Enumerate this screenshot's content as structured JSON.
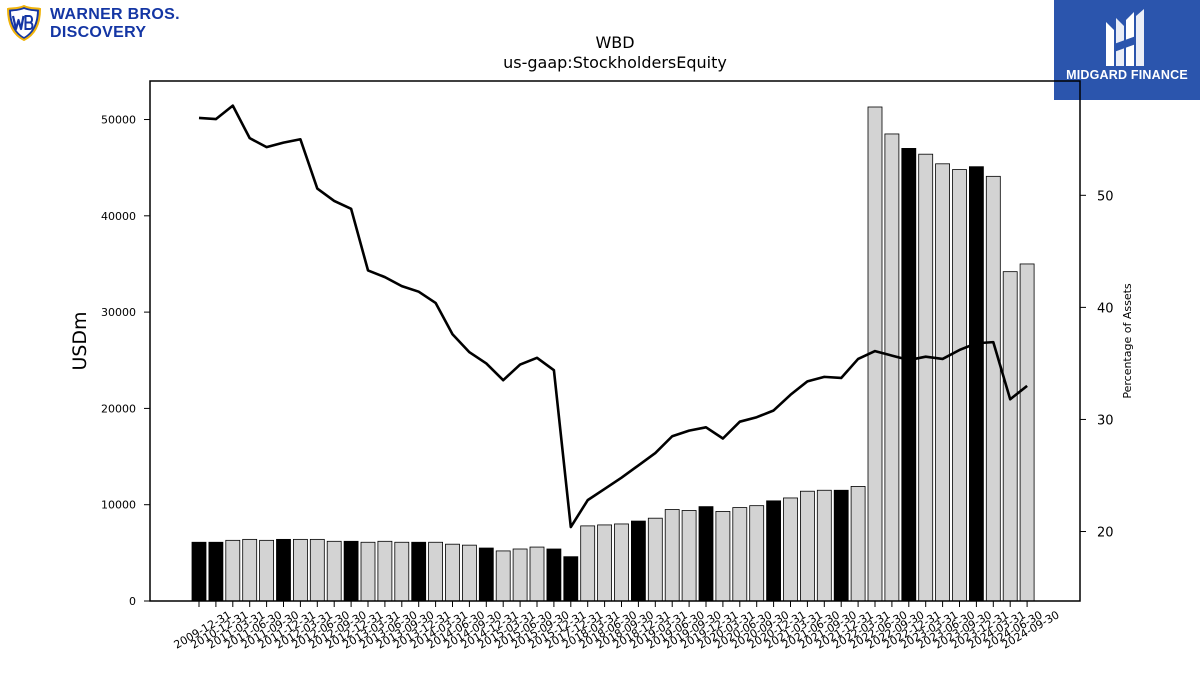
{
  "logo_left": {
    "line1": "WARNER BROS.",
    "line2": "DISCOVERY",
    "icon": "wb-shield-icon",
    "color": "#1436a4"
  },
  "logo_right": {
    "text": "MIDGARD FINANCE",
    "icon": "midgard-m-icon",
    "background": "#2b55ad"
  },
  "chart_data": {
    "type": "bar",
    "title": "WBD",
    "subtitle": "us-gaap:StockholdersEquity",
    "ylabel": "USDm",
    "y2label": "Percentage of Assets",
    "ylim": [
      0,
      54000
    ],
    "y2lim": [
      13.8,
      60.2
    ],
    "yticks": [
      0,
      10000,
      20000,
      30000,
      40000,
      50000
    ],
    "y2ticks": [
      20,
      30,
      40,
      50
    ],
    "grid": false,
    "bar_colors": {
      "annual": "#000000",
      "quarterly": "#d3d3d3",
      "edge": "#000000"
    },
    "line_color": "#000000",
    "categories": [
      "2009-12-31",
      "2010-12-31",
      "2011-03-31",
      "2011-06-30",
      "2011-09-30",
      "2011-12-31",
      "2012-03-31",
      "2012-06-30",
      "2012-09-30",
      "2012-12-31",
      "2013-03-31",
      "2013-06-30",
      "2013-09-30",
      "2013-12-31",
      "2014-03-31",
      "2014-06-30",
      "2014-09-30",
      "2014-12-31",
      "2015-03-31",
      "2015-06-30",
      "2015-09-30",
      "2015-12-31",
      "2017-12-31",
      "2018-03-31",
      "2018-06-30",
      "2018-09-30",
      "2018-12-31",
      "2019-03-31",
      "2019-06-30",
      "2019-09-30",
      "2019-12-31",
      "2020-03-31",
      "2020-06-30",
      "2020-09-30",
      "2020-12-31",
      "2021-03-31",
      "2021-06-30",
      "2021-09-30",
      "2021-12-31",
      "2022-03-31",
      "2022-06-30",
      "2022-09-30",
      "2022-12-31",
      "2023-03-31",
      "2023-06-30",
      "2023-09-30",
      "2023-12-31",
      "2024-03-31",
      "2024-06-30",
      "2024-09-30"
    ],
    "series": [
      {
        "type": "bar",
        "values": [
          6100,
          6100,
          6300,
          6400,
          6300,
          6400,
          6400,
          6400,
          6200,
          6200,
          6100,
          6200,
          6100,
          6100,
          6100,
          5900,
          5800,
          5500,
          5200,
          5400,
          5600,
          5400,
          4600,
          7800,
          7900,
          8000,
          8300,
          8600,
          9500,
          9400,
          9800,
          9300,
          9700,
          9900,
          10400,
          10700,
          11400,
          11500,
          11500,
          11900,
          51300,
          48500,
          47000,
          46400,
          45400,
          44800,
          45100,
          44100,
          34200,
          35000
        ],
        "annual": [
          true,
          true,
          false,
          false,
          false,
          true,
          false,
          false,
          false,
          true,
          false,
          false,
          false,
          true,
          false,
          false,
          false,
          true,
          false,
          false,
          false,
          true,
          true,
          false,
          false,
          false,
          true,
          false,
          false,
          false,
          true,
          false,
          false,
          false,
          true,
          false,
          false,
          false,
          true,
          false,
          false,
          false,
          true,
          false,
          false,
          false,
          true,
          false,
          false,
          false
        ]
      },
      {
        "type": "line",
        "values": [
          56.9,
          56.8,
          58.0,
          55.1,
          54.3,
          54.7,
          55.0,
          50.6,
          49.5,
          48.8,
          43.3,
          42.7,
          41.9,
          41.4,
          40.4,
          37.6,
          36.0,
          35.0,
          33.5,
          34.9,
          35.5,
          34.4,
          20.4,
          22.8,
          23.8,
          24.8,
          25.9,
          27.0,
          28.5,
          29.0,
          29.3,
          28.3,
          29.8,
          30.2,
          30.8,
          32.2,
          33.4,
          33.8,
          33.7,
          35.4,
          36.1,
          35.7,
          35.3,
          35.6,
          35.4,
          36.2,
          36.8,
          36.9,
          31.8,
          33.0
        ]
      }
    ]
  }
}
